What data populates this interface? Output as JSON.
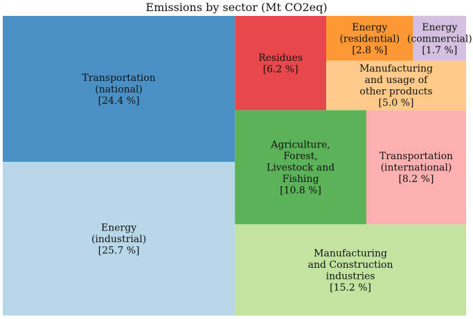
{
  "chart_data": {
    "type": "treemap",
    "title": "Emissions by sector (Mt CO2eq)",
    "items": [
      {
        "label": "Energy (industrial) [25.7 %]",
        "lines": [
          "Energy",
          "(industrial)",
          "[25.7 %]"
        ],
        "percent": 25.7,
        "color": "#b8d8ea"
      },
      {
        "label": "Transportation (national) [24.4 %]",
        "lines": [
          "Transportation",
          "(national)",
          "[24.4 %]"
        ],
        "percent": 24.4,
        "color": "#4a90c4"
      },
      {
        "label": "Manufacturing and Construction industries [15.2 %]",
        "lines": [
          "Manufacturing",
          "and Construction",
          "industries",
          "[15.2 %]"
        ],
        "percent": 15.2,
        "color": "#c2e4a0"
      },
      {
        "label": "Agriculture, Forest, Livestock and Fishing [10.8 %]",
        "lines": [
          "Agriculture,",
          "Forest,",
          "Livestock and",
          "Fishing",
          "[10.8 %]"
        ],
        "percent": 10.8,
        "color": "#5cb258"
      },
      {
        "label": "Transportation (international) [8.2 %]",
        "lines": [
          "Transportation",
          "(international)",
          "[8.2 %]"
        ],
        "percent": 8.2,
        "color": "#fcb0b0"
      },
      {
        "label": "Residues [6.2 %]",
        "lines": [
          "Residues",
          "[6.2 %]"
        ],
        "percent": 6.2,
        "color": "#e8474c"
      },
      {
        "label": "Manufacturing and usage of other products [5.0 %]",
        "lines": [
          "Manufacturing",
          "and usage of",
          "other products",
          "[5.0 %]"
        ],
        "percent": 5.0,
        "color": "#fdca8a"
      },
      {
        "label": "Energy (residential) [2.8 %]",
        "lines": [
          "Energy",
          "(residential)",
          "[2.8 %]"
        ],
        "percent": 2.8,
        "color": "#fd9835"
      },
      {
        "label": "Energy (commercial) [1.7 %]",
        "lines": [
          "Energy",
          "(commercial)",
          "[1.7 %]"
        ],
        "percent": 1.7,
        "color": "#d4c0e0"
      }
    ]
  }
}
